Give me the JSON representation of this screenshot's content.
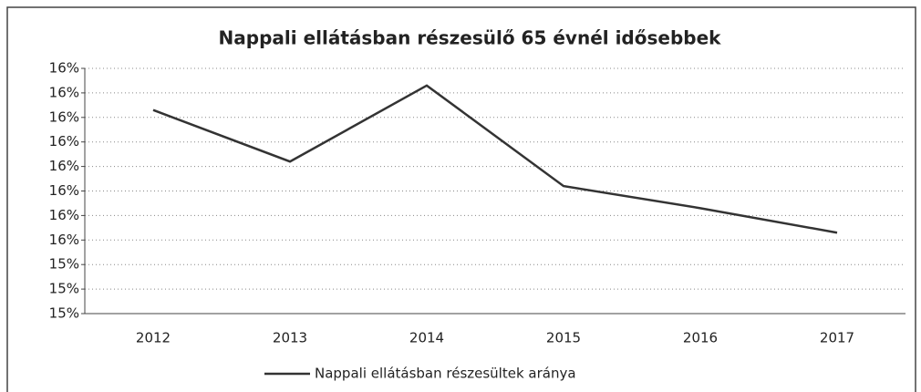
{
  "chart_data": {
    "type": "line",
    "title": "Nappali ellátásban részesülő 65 évnél idősebbek",
    "categories": [
      "2012",
      "2013",
      "2014",
      "2015",
      "2016",
      "2017"
    ],
    "series": [
      {
        "name": "Nappali ellátásban részesültek aránya",
        "color": "#333333",
        "values": [
          16.03,
          15.82,
          16.13,
          15.72,
          15.63,
          15.53
        ]
      }
    ],
    "ylim": [
      15.2,
      16.2
    ],
    "yticks": [
      {
        "value": 15.2,
        "label": "15%"
      },
      {
        "value": 15.3,
        "label": "15%"
      },
      {
        "value": 15.4,
        "label": "15%"
      },
      {
        "value": 15.5,
        "label": "16%"
      },
      {
        "value": 15.6,
        "label": "16%"
      },
      {
        "value": 15.7,
        "label": "16%"
      },
      {
        "value": 15.8,
        "label": "16%"
      },
      {
        "value": 15.9,
        "label": "16%"
      },
      {
        "value": 16.0,
        "label": "16%"
      },
      {
        "value": 16.1,
        "label": "16%"
      },
      {
        "value": 16.2,
        "label": "16%"
      }
    ],
    "grid": true
  }
}
